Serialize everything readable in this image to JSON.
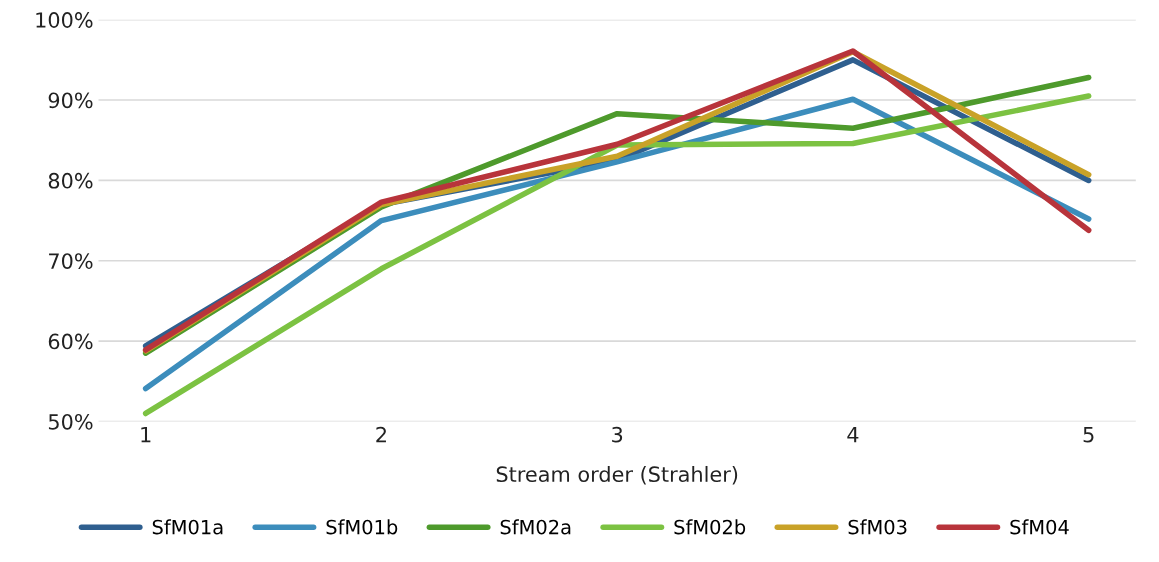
{
  "chart_data": {
    "type": "line",
    "xlabel": "Stream order (Strahler)",
    "categories": [
      "1",
      "2",
      "3",
      "4",
      "5"
    ],
    "series": [
      {
        "name": "SfM01a",
        "color": "#2f5f8f",
        "values": [
          59.4,
          77.0,
          82.5,
          95.0,
          80.0
        ]
      },
      {
        "name": "SfM01b",
        "color": "#3c8dbc",
        "values": [
          54.1,
          75.0,
          82.3,
          90.1,
          75.2
        ]
      },
      {
        "name": "SfM02a",
        "color": "#4e9a2c",
        "values": [
          58.5,
          76.7,
          88.3,
          86.5,
          92.8
        ]
      },
      {
        "name": "SfM02b",
        "color": "#7cc242",
        "values": [
          51.0,
          69.0,
          84.4,
          84.6,
          90.5
        ]
      },
      {
        "name": "SfM03",
        "color": "#c9a228",
        "values": [
          58.8,
          77.0,
          83.0,
          96.0,
          80.7
        ]
      },
      {
        "name": "SfM04",
        "color": "#b8343b",
        "values": [
          58.9,
          77.3,
          84.5,
          96.1,
          73.8
        ]
      }
    ],
    "ylim": [
      50,
      100
    ],
    "yticks": [
      {
        "value": 50,
        "label": "50%"
      },
      {
        "value": 60,
        "label": "60%"
      },
      {
        "value": 70,
        "label": "70%"
      },
      {
        "value": 80,
        "label": "80%"
      },
      {
        "value": 90,
        "label": "90%"
      },
      {
        "value": 100,
        "label": "100%"
      }
    ],
    "grid": "y",
    "legend": "bottom",
    "marker": "none",
    "line_style": "solid"
  }
}
